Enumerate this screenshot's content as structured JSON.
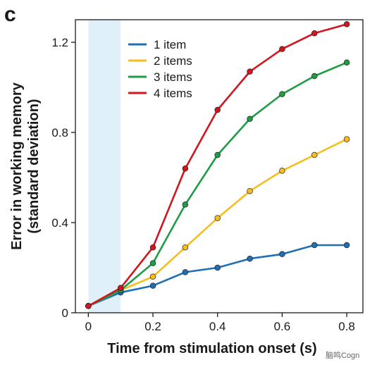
{
  "panel_label": "c",
  "watermark": "脑鸣Cogn",
  "chart_data": {
    "type": "line",
    "title": "",
    "xlabel": "Time from stimulation onset (s)",
    "ylabel_lines": [
      "Error in working memory",
      "(standard deviation)"
    ],
    "xlim": [
      -0.04,
      0.85
    ],
    "ylim": [
      0,
      1.3
    ],
    "xticks": [
      0,
      0.2,
      0.4,
      0.6,
      0.8
    ],
    "xtick_labels": [
      "0",
      "0.2",
      "0.4",
      "0.6",
      "0.8"
    ],
    "yticks": [
      0,
      0.4,
      0.8,
      1.2
    ],
    "ytick_labels": [
      "0",
      "0.4",
      "0.8",
      "1.2"
    ],
    "shaded_region": {
      "x": [
        0,
        0.1
      ],
      "color": "#dff0fb"
    },
    "grid": false,
    "legend_position": "top-left",
    "x": [
      0,
      0.1,
      0.2,
      0.3,
      0.4,
      0.5,
      0.6,
      0.7,
      0.8
    ],
    "series": [
      {
        "name": "1 item",
        "color": "#1e6fb5",
        "values": [
          0.03,
          0.09,
          0.12,
          0.18,
          0.2,
          0.24,
          0.26,
          0.3,
          0.3
        ]
      },
      {
        "name": "2 items",
        "color": "#f7bd1e",
        "values": [
          0.03,
          0.1,
          0.16,
          0.29,
          0.42,
          0.54,
          0.63,
          0.7,
          0.77
        ]
      },
      {
        "name": "3 items",
        "color": "#1e9c46",
        "values": [
          0.03,
          0.1,
          0.22,
          0.48,
          0.7,
          0.86,
          0.97,
          1.05,
          1.11
        ]
      },
      {
        "name": "4 items",
        "color": "#d2151f",
        "values": [
          0.03,
          0.11,
          0.29,
          0.64,
          0.9,
          1.07,
          1.17,
          1.24,
          1.28
        ]
      }
    ]
  }
}
